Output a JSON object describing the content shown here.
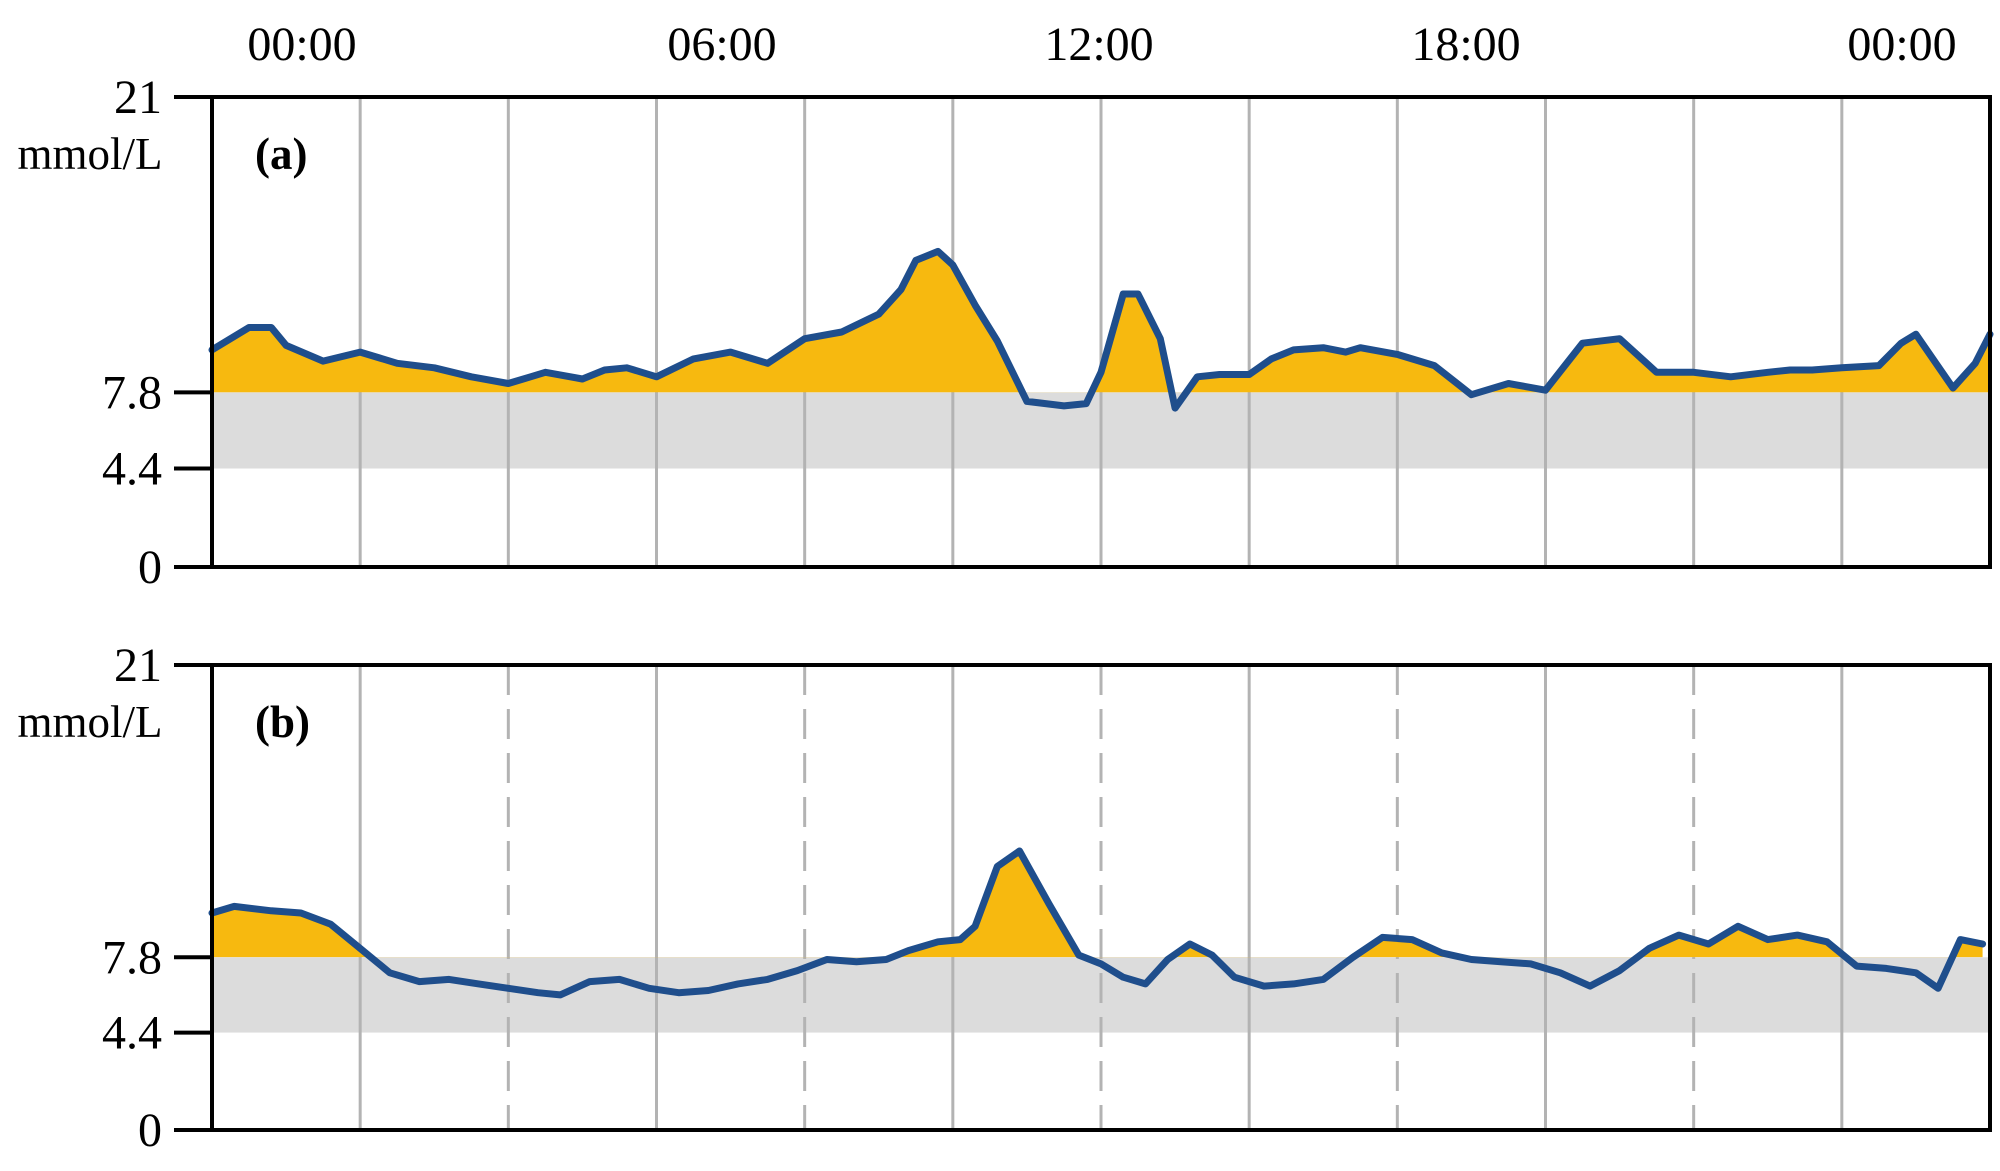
{
  "x_tick_labels": [
    "00:00",
    "06:00",
    "12:00",
    "18:00",
    "00:00"
  ],
  "chart_data": [
    {
      "type": "area",
      "panel_label": "(a)",
      "ylabel": "mmol/L",
      "ylim": [
        0,
        21
      ],
      "yticks": [
        0,
        4.4,
        7.8,
        21
      ],
      "target_range": [
        4.4,
        7.8
      ],
      "x_unit": "hours",
      "xlim": [
        0,
        24
      ],
      "colors": {
        "line": "#1f4e8c",
        "above_target": "#f7b90f",
        "target_band": "#dcdcdc",
        "grid": "#b3b3b3",
        "axis": "#000000"
      },
      "x": [
        0,
        0.5,
        0.8,
        1,
        1.5,
        2,
        2.5,
        3,
        3.5,
        4,
        4.3,
        4.5,
        5,
        5.3,
        5.6,
        6,
        6.5,
        7,
        7.5,
        8,
        8.5,
        9,
        9.3,
        9.5,
        9.8,
        10,
        10.3,
        10.6,
        11,
        11.5,
        11.8,
        12,
        12.3,
        12.5,
        12.8,
        13,
        13.3,
        13.6,
        14,
        14.3,
        14.6,
        15,
        15.3,
        15.5,
        16,
        16.5,
        17,
        17.5,
        18,
        18.5,
        19,
        19.5,
        20,
        20.5,
        21,
        21.3,
        21.6,
        22,
        22.5,
        22.8,
        23,
        23.5,
        23.8,
        24
      ],
      "y": [
        9.7,
        10.7,
        10.7,
        9.9,
        9.2,
        9.6,
        9.1,
        8.9,
        8.5,
        8.2,
        8.5,
        8.7,
        8.4,
        8.8,
        8.9,
        8.5,
        9.3,
        9.6,
        9.1,
        10.2,
        10.5,
        11.3,
        12.4,
        13.7,
        14.1,
        13.5,
        11.7,
        10.1,
        7.4,
        7.2,
        7.3,
        8.7,
        12.2,
        12.2,
        10.2,
        7.1,
        8.5,
        8.6,
        8.6,
        9.3,
        9.7,
        9.8,
        9.6,
        9.8,
        9.5,
        9.0,
        7.7,
        8.2,
        7.9,
        10.0,
        10.2,
        8.7,
        8.7,
        8.5,
        8.7,
        8.8,
        8.8,
        8.9,
        9.0,
        10.0,
        10.4,
        8.0,
        9.1,
        10.4
      ]
    },
    {
      "type": "area",
      "panel_label": "(b)",
      "ylabel": "mmol/L",
      "ylim": [
        0,
        21
      ],
      "yticks": [
        0,
        4.4,
        7.8,
        21
      ],
      "target_range": [
        4.4,
        7.8
      ],
      "x_unit": "hours",
      "xlim": [
        0,
        24
      ],
      "colors": {
        "line": "#1f4e8c",
        "above_target": "#f7b90f",
        "target_band": "#dcdcdc",
        "grid": "#b3b3b3",
        "axis": "#000000"
      },
      "x": [
        0,
        0.3,
        0.8,
        1.2,
        1.6,
        2,
        2.4,
        2.8,
        3.2,
        3.6,
        4,
        4.4,
        4.7,
        5.1,
        5.5,
        5.9,
        6.3,
        6.7,
        7.1,
        7.5,
        7.9,
        8.3,
        8.7,
        9.1,
        9.4,
        9.8,
        10.1,
        10.3,
        10.6,
        10.9,
        11.3,
        11.7,
        12,
        12.3,
        12.6,
        12.9,
        13.2,
        13.5,
        13.8,
        14.2,
        14.6,
        15,
        15.4,
        15.8,
        16.2,
        16.6,
        17,
        17.4,
        17.8,
        18.2,
        18.6,
        19,
        19.4,
        19.8,
        20.2,
        20.6,
        21,
        21.4,
        21.8,
        22.2,
        22.6,
        23,
        23.3,
        23.6,
        23.9
      ],
      "y": [
        9.8,
        10.1,
        9.9,
        9.8,
        9.3,
        8.2,
        7.1,
        6.7,
        6.8,
        6.6,
        6.4,
        6.2,
        6.1,
        6.7,
        6.8,
        6.4,
        6.2,
        6.3,
        6.6,
        6.8,
        7.2,
        7.7,
        7.6,
        7.7,
        8.1,
        8.5,
        8.6,
        9.2,
        11.9,
        12.6,
        10.2,
        7.9,
        7.5,
        6.9,
        6.6,
        7.7,
        8.4,
        7.9,
        6.9,
        6.5,
        6.6,
        6.8,
        7.8,
        8.7,
        8.6,
        8.0,
        7.7,
        7.6,
        7.5,
        7.1,
        6.5,
        7.2,
        8.2,
        8.8,
        8.4,
        9.2,
        8.6,
        8.8,
        8.5,
        7.4,
        7.3,
        7.1,
        6.4,
        8.6,
        8.4
      ]
    }
  ]
}
